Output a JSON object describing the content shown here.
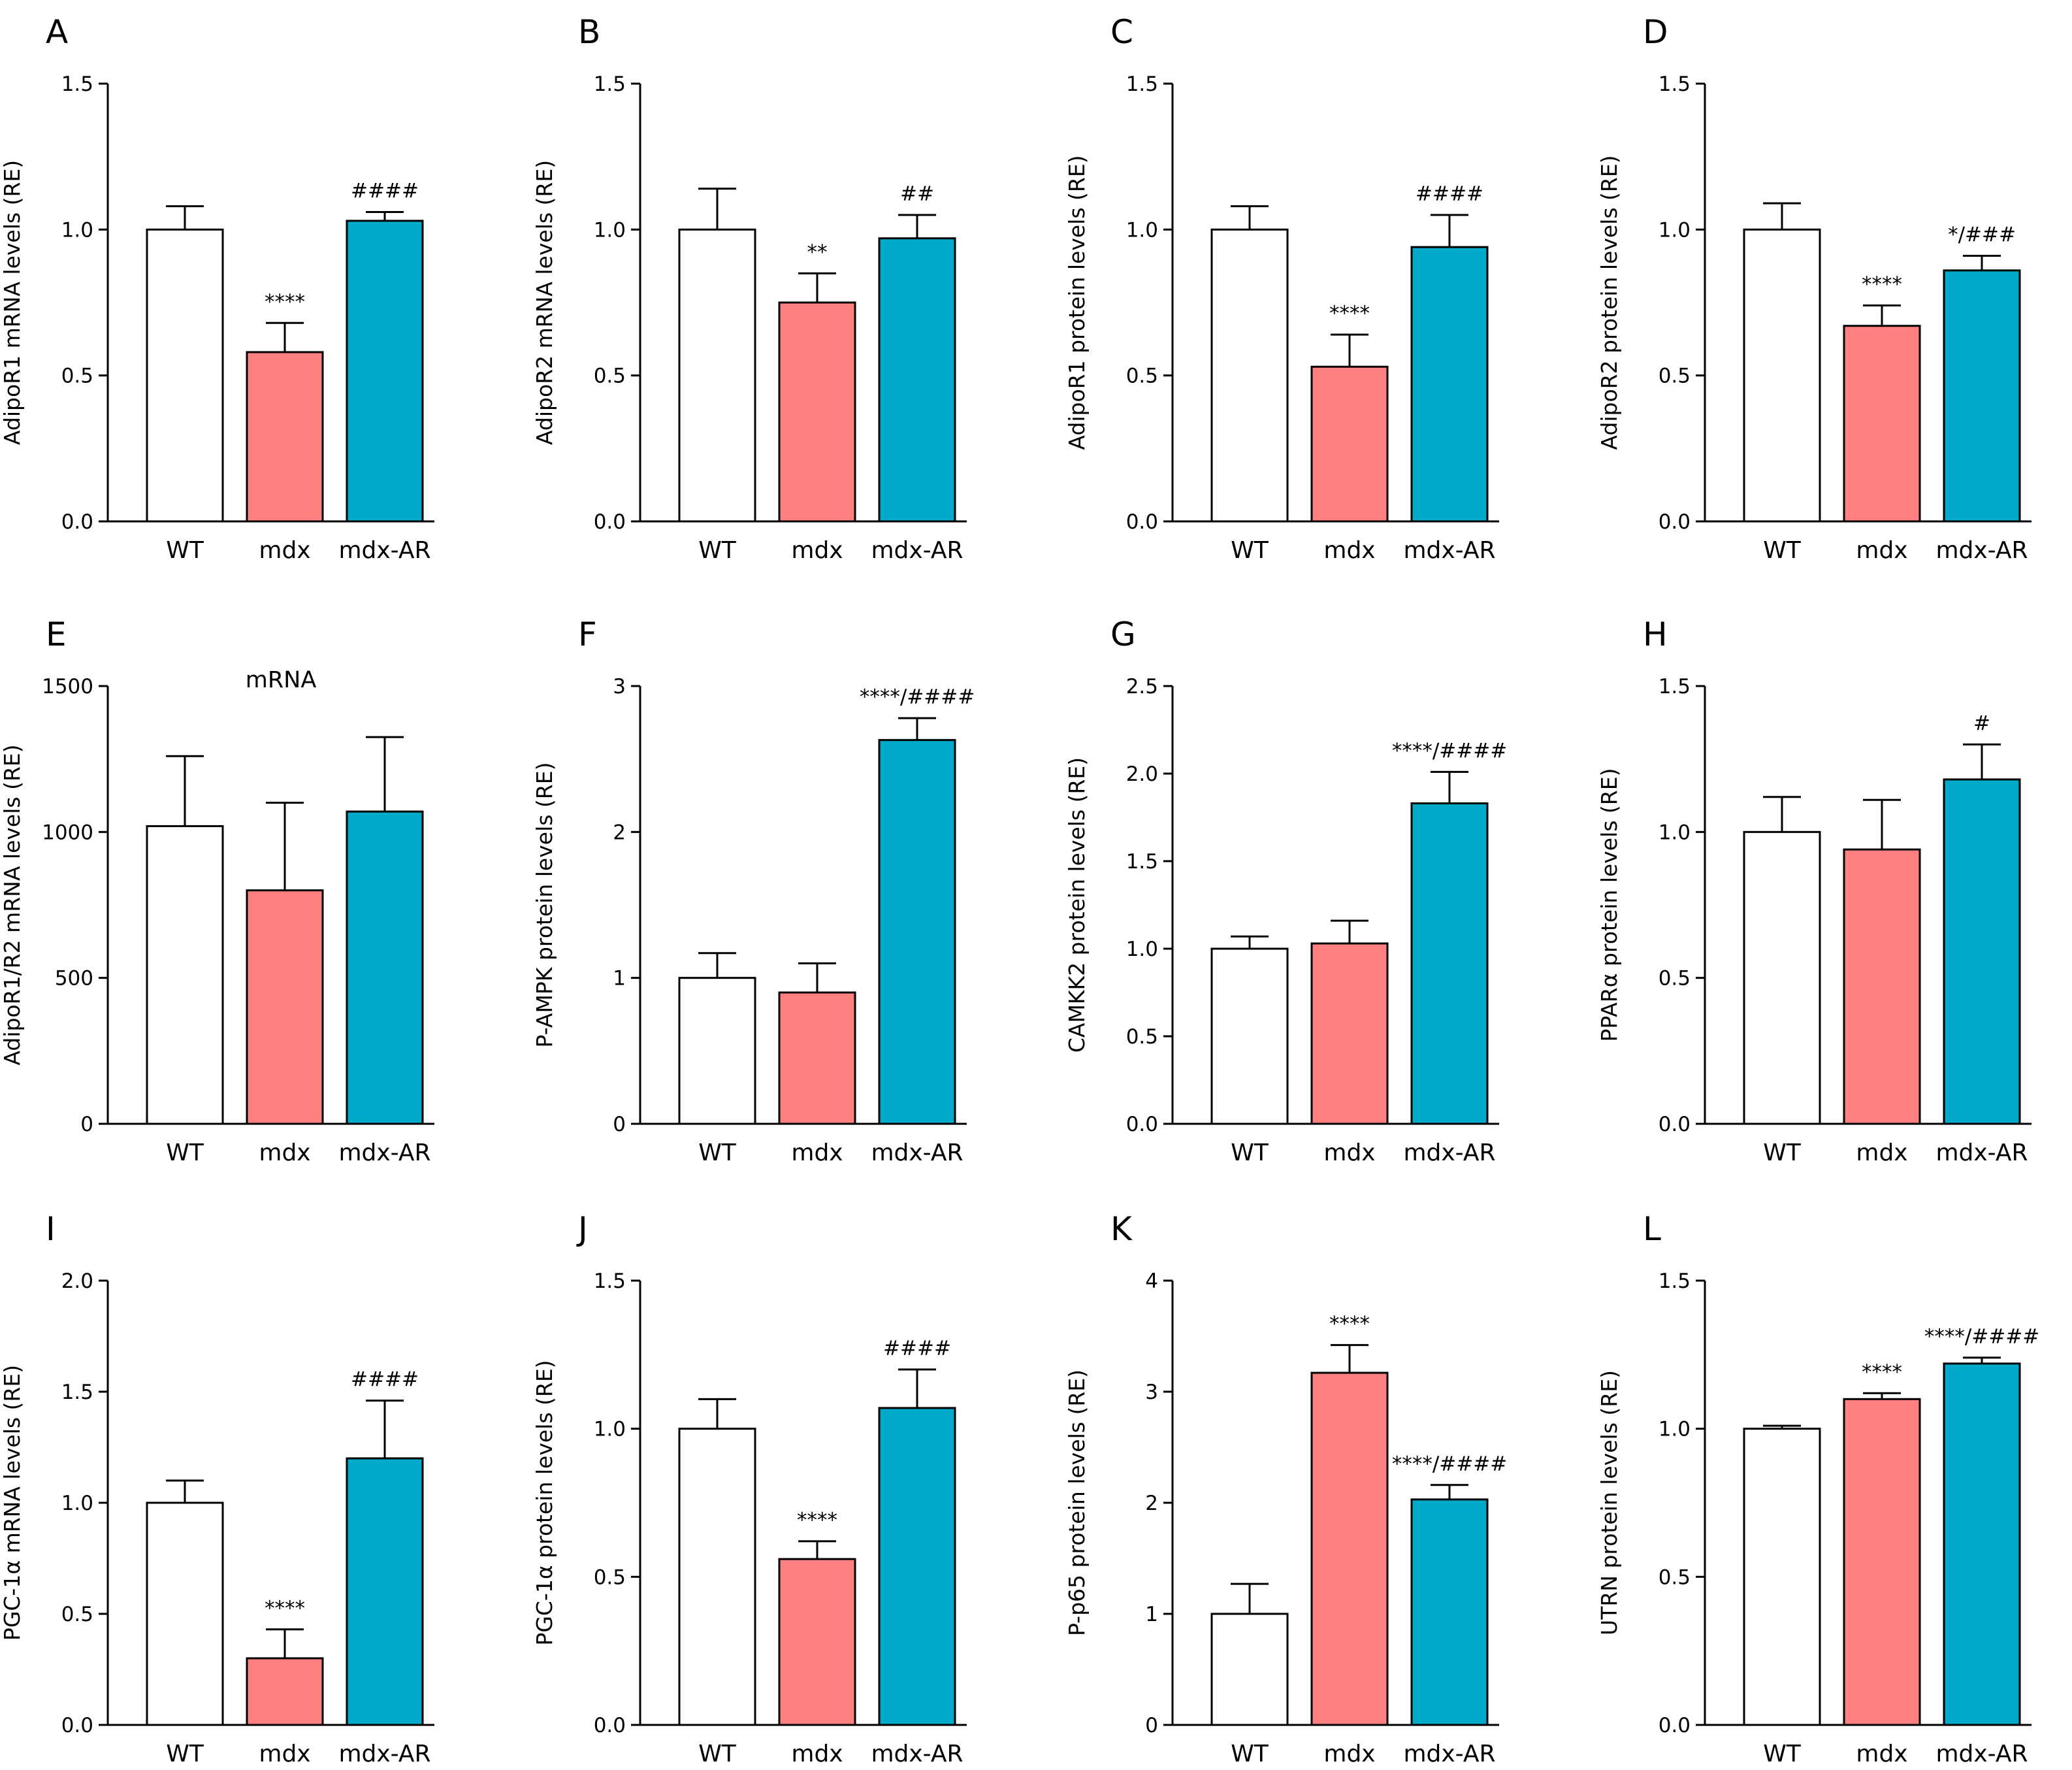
{
  "colors": {
    "WT": "#ffffff",
    "mdx": "#ff8080",
    "mdx-AR": "#00aac8"
  },
  "chart_data": [
    {
      "label": "A",
      "type": "bar",
      "ylabel": "AdipoR1 mRNA levels (RE)",
      "ylim": [
        0,
        1.5
      ],
      "ticks": [
        "0.0",
        "0.5",
        "1.0",
        "1.5"
      ],
      "categories": [
        "WT",
        "mdx",
        "mdx-AR"
      ],
      "values": [
        1.0,
        0.58,
        1.03
      ],
      "errors": [
        0.08,
        0.1,
        0.03
      ],
      "annotations": [
        "",
        "****",
        "####"
      ],
      "subtitle": ""
    },
    {
      "label": "B",
      "type": "bar",
      "ylabel": "AdipoR2 mRNA levels (RE)",
      "ylim": [
        0,
        1.5
      ],
      "ticks": [
        "0.0",
        "0.5",
        "1.0",
        "1.5"
      ],
      "categories": [
        "WT",
        "mdx",
        "mdx-AR"
      ],
      "values": [
        1.0,
        0.75,
        0.97
      ],
      "errors": [
        0.14,
        0.1,
        0.08
      ],
      "annotations": [
        "",
        "**",
        "##"
      ],
      "subtitle": ""
    },
    {
      "label": "C",
      "type": "bar",
      "ylabel": "AdipoR1 protein levels (RE)",
      "ylim": [
        0,
        1.5
      ],
      "ticks": [
        "0.0",
        "0.5",
        "1.0",
        "1.5"
      ],
      "categories": [
        "WT",
        "mdx",
        "mdx-AR"
      ],
      "values": [
        1.0,
        0.53,
        0.94
      ],
      "errors": [
        0.08,
        0.11,
        0.11
      ],
      "annotations": [
        "",
        "****",
        "####"
      ],
      "subtitle": ""
    },
    {
      "label": "D",
      "type": "bar",
      "ylabel": "AdipoR2 protein levels (RE)",
      "ylim": [
        0,
        1.5
      ],
      "ticks": [
        "0.0",
        "0.5",
        "1.0",
        "1.5"
      ],
      "categories": [
        "WT",
        "mdx",
        "mdx-AR"
      ],
      "values": [
        1.0,
        0.67,
        0.86
      ],
      "errors": [
        0.09,
        0.07,
        0.05
      ],
      "annotations": [
        "",
        "****",
        "*/###"
      ],
      "subtitle": ""
    },
    {
      "label": "E",
      "type": "bar",
      "ylabel": "AdipoR1/R2 mRNA levels (RE)",
      "ylim": [
        0,
        1500
      ],
      "ticks": [
        "0",
        "500",
        "1000",
        "1500"
      ],
      "categories": [
        "WT",
        "mdx",
        "mdx-AR"
      ],
      "values": [
        1020,
        800,
        1070
      ],
      "errors": [
        240,
        300,
        255
      ],
      "annotations": [
        "",
        "",
        ""
      ],
      "subtitle": "mRNA"
    },
    {
      "label": "F",
      "type": "bar",
      "ylabel": "P-AMPK protein levels (RE)",
      "ylim": [
        0,
        3
      ],
      "ticks": [
        "0",
        "1",
        "2",
        "3"
      ],
      "categories": [
        "WT",
        "mdx",
        "mdx-AR"
      ],
      "values": [
        1.0,
        0.9,
        2.63
      ],
      "errors": [
        0.17,
        0.2,
        0.15
      ],
      "annotations": [
        "",
        "",
        "****/####"
      ],
      "subtitle": ""
    },
    {
      "label": "G",
      "type": "bar",
      "ylabel": "CAMKK2 protein levels (RE)",
      "ylim": [
        0,
        2.5
      ],
      "ticks": [
        "0.0",
        "0.5",
        "1.0",
        "1.5",
        "2.0",
        "2.5"
      ],
      "categories": [
        "WT",
        "mdx",
        "mdx-AR"
      ],
      "values": [
        1.0,
        1.03,
        1.83
      ],
      "errors": [
        0.07,
        0.13,
        0.18
      ],
      "annotations": [
        "",
        "",
        "****/####"
      ],
      "subtitle": ""
    },
    {
      "label": "H",
      "type": "bar",
      "ylabel": "PPARα protein levels (RE)",
      "ylim": [
        0,
        1.5
      ],
      "ticks": [
        "0.0",
        "0.5",
        "1.0",
        "1.5"
      ],
      "categories": [
        "WT",
        "mdx",
        "mdx-AR"
      ],
      "values": [
        1.0,
        0.94,
        1.18
      ],
      "errors": [
        0.12,
        0.17,
        0.12
      ],
      "annotations": [
        "",
        "",
        "#"
      ],
      "subtitle": ""
    },
    {
      "label": "I",
      "type": "bar",
      "ylabel": "PGC-1α mRNA levels (RE)",
      "ylim": [
        0,
        2.0
      ],
      "ticks": [
        "0.0",
        "0.5",
        "1.0",
        "1.5",
        "2.0"
      ],
      "categories": [
        "WT",
        "mdx",
        "mdx-AR"
      ],
      "values": [
        1.0,
        0.3,
        1.2
      ],
      "errors": [
        0.1,
        0.13,
        0.26
      ],
      "annotations": [
        "",
        "****",
        "####"
      ],
      "subtitle": ""
    },
    {
      "label": "J",
      "type": "bar",
      "ylabel": "PGC-1α protein levels (RE)",
      "ylim": [
        0,
        1.5
      ],
      "ticks": [
        "0.0",
        "0.5",
        "1.0",
        "1.5"
      ],
      "categories": [
        "WT",
        "mdx",
        "mdx-AR"
      ],
      "values": [
        1.0,
        0.56,
        1.07
      ],
      "errors": [
        0.1,
        0.06,
        0.13
      ],
      "annotations": [
        "",
        "****",
        "####"
      ],
      "subtitle": ""
    },
    {
      "label": "K",
      "type": "bar",
      "ylabel": "P-p65 protein levels (RE)",
      "ylim": [
        0,
        4
      ],
      "ticks": [
        "0",
        "1",
        "2",
        "3",
        "4"
      ],
      "categories": [
        "WT",
        "mdx",
        "mdx-AR"
      ],
      "values": [
        1.0,
        3.17,
        2.03
      ],
      "errors": [
        0.27,
        0.25,
        0.13
      ],
      "annotations": [
        "",
        "****",
        "****/####"
      ],
      "subtitle": ""
    },
    {
      "label": "L",
      "type": "bar",
      "ylabel": "UTRN protein levels (RE)",
      "ylim": [
        0,
        1.5
      ],
      "ticks": [
        "0.0",
        "0.5",
        "1.0",
        "1.5"
      ],
      "categories": [
        "WT",
        "mdx",
        "mdx-AR"
      ],
      "values": [
        1.0,
        1.1,
        1.22
      ],
      "errors": [
        0.01,
        0.02,
        0.02
      ],
      "annotations": [
        "",
        "****",
        "****/####"
      ],
      "subtitle": ""
    }
  ]
}
